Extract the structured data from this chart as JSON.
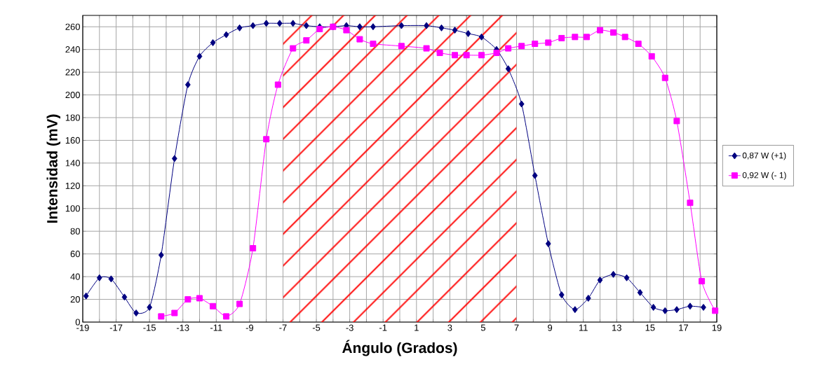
{
  "chart_data": {
    "type": "line",
    "xlabel": "Ángulo (Grados)",
    "ylabel": "Intensidad (mV)",
    "xlim": [
      -19,
      19
    ],
    "ylim": [
      0,
      270
    ],
    "xticks": [
      -19,
      {
        "value": -18,
        "label": null
      },
      -17,
      {
        "value": -16,
        "label": null
      },
      -15,
      {
        "value": -14,
        "label": null
      },
      -13,
      {
        "value": -12,
        "label": null
      },
      -11,
      {
        "value": -10,
        "label": null
      },
      -9,
      {
        "value": -8,
        "label": null
      },
      -7,
      {
        "value": -6,
        "label": null
      },
      -5,
      {
        "value": -4,
        "label": null
      },
      -3,
      {
        "value": -2,
        "label": null
      },
      -1,
      {
        "value": 0,
        "label": null
      },
      1,
      {
        "value": 2,
        "label": null
      },
      3,
      {
        "value": 4,
        "label": null
      },
      5,
      {
        "value": 6,
        "label": null
      },
      7,
      {
        "value": 8,
        "label": null
      },
      9,
      {
        "value": 10,
        "label": null
      },
      11,
      {
        "value": 12,
        "label": null
      },
      13,
      {
        "value": 14,
        "label": null
      },
      15,
      {
        "value": 16,
        "label": null
      },
      17,
      {
        "value": 18,
        "label": null
      },
      19
    ],
    "yticks": [
      0,
      20,
      40,
      60,
      80,
      100,
      120,
      140,
      160,
      180,
      200,
      220,
      240,
      260
    ],
    "grid": true,
    "legend": "right",
    "bands": [
      {
        "axis": "x",
        "from": -7,
        "to": 7,
        "color": "#ff0000"
      }
    ],
    "series": [
      {
        "name": "0,87 W (+1)",
        "color": "#000080",
        "marker": "diamond",
        "x": [
          -18.8,
          -18.0,
          -17.3,
          -16.5,
          -15.8,
          -15.0,
          -14.3,
          -13.5,
          -12.7,
          -12.0,
          -11.2,
          -10.4,
          -9.6,
          -8.8,
          -8.0,
          -7.2,
          -6.4,
          -5.6,
          -4.8,
          -4.0,
          -3.2,
          -2.4,
          -1.6,
          0.1,
          1.6,
          2.5,
          3.3,
          4.1,
          4.9,
          5.8,
          6.5,
          7.3,
          8.1,
          8.9,
          9.7,
          10.5,
          11.3,
          12.0,
          12.8,
          13.6,
          14.4,
          15.2,
          15.9,
          16.6,
          17.4,
          18.2
        ],
        "values": [
          23,
          39,
          38,
          22,
          8,
          13,
          59,
          144,
          209,
          234,
          246,
          253,
          259,
          261,
          263,
          263,
          263,
          261,
          260,
          260,
          261,
          260,
          260,
          261,
          261,
          259,
          257,
          254,
          251,
          240,
          223,
          192,
          129,
          69,
          24,
          11,
          21,
          37,
          42,
          39,
          26,
          13,
          10,
          11,
          14,
          13
        ]
      },
      {
        "name": "0,92 W (- 1)",
        "color": "#ff00ff",
        "marker": "square",
        "x": [
          -14.3,
          -13.5,
          -12.7,
          -12.0,
          -11.2,
          -10.4,
          -9.6,
          -8.8,
          -8.0,
          -7.3,
          -6.4,
          -5.6,
          -4.8,
          -4.0,
          -3.2,
          -2.4,
          -1.6,
          0.1,
          1.6,
          2.4,
          3.3,
          4.0,
          4.9,
          5.8,
          6.5,
          7.3,
          8.1,
          8.9,
          9.7,
          10.5,
          11.2,
          12.0,
          12.8,
          13.5,
          14.3,
          15.1,
          15.9,
          16.6,
          17.4,
          18.1,
          18.9
        ],
        "values": [
          5,
          8,
          20,
          21,
          14,
          5,
          16,
          65,
          161,
          209,
          241,
          248,
          258,
          260,
          257,
          249,
          245,
          243,
          241,
          237,
          235,
          235,
          235,
          237,
          241,
          243,
          245,
          246,
          250,
          251,
          251,
          257,
          255,
          251,
          245,
          234,
          215,
          177,
          105,
          36,
          10
        ]
      }
    ]
  }
}
